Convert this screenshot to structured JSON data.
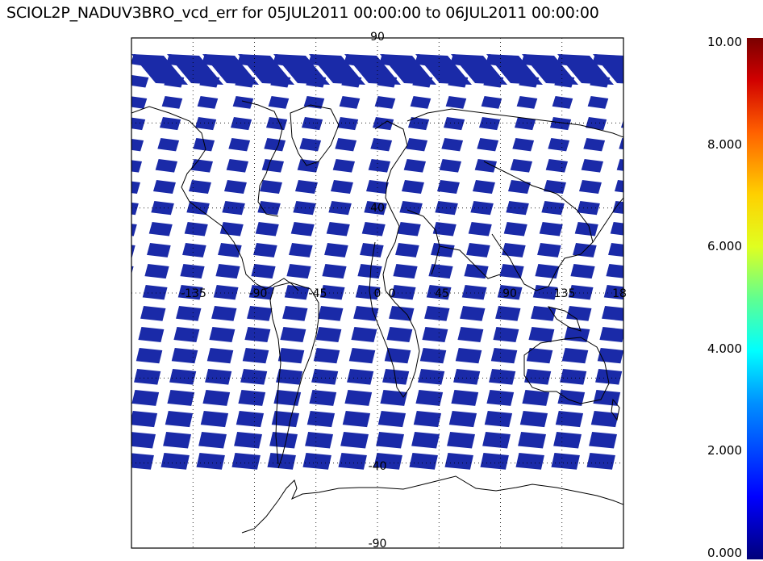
{
  "title": "SCIOL2P_NADUV3BRO_vcd_err for 05JUL2011 00:00:00 to 06JUL2011 00:00:00",
  "map": {
    "projection": "cylindrical",
    "lat_labels": [
      "90",
      "40",
      "0",
      "-40",
      "-90"
    ],
    "lon_labels": [
      "-135",
      "-90",
      "-45",
      "0",
      "45",
      "90",
      "135",
      "18"
    ],
    "swath_color": "#1a2aa8",
    "coast_color": "#000000",
    "grid_style": "dotted"
  },
  "colorbar": {
    "ticks": [
      "10.00",
      "8.000",
      "6.000",
      "4.000",
      "2.000",
      "0.000"
    ],
    "min": 0,
    "max": 10,
    "colormap": "rainbow"
  }
}
